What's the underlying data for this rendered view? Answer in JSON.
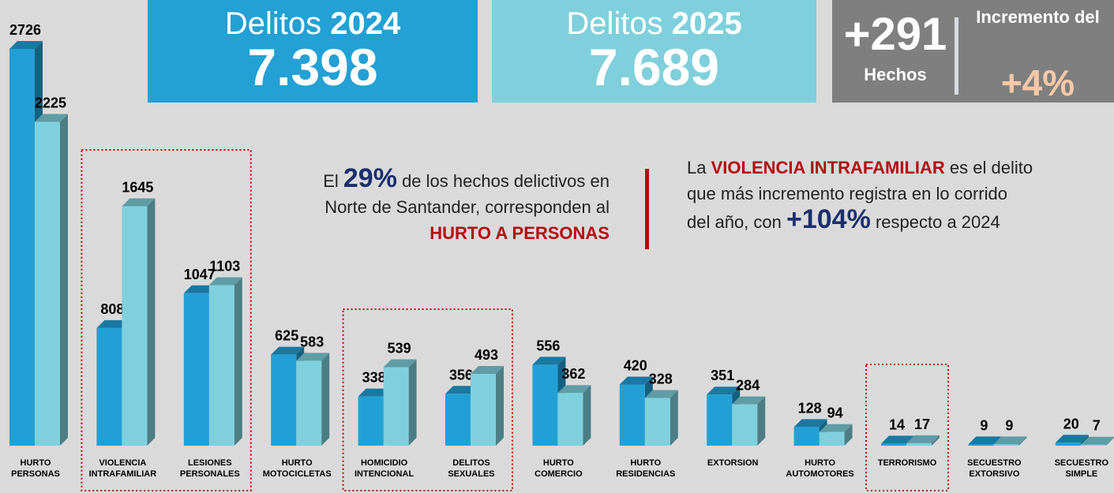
{
  "chart_data": {
    "type": "bar3d",
    "categories": [
      "HURTO PERSONAS",
      "VIOLENCIA INTRAFAMILIAR",
      "LESIONES PERSONALES",
      "HURTO MOTOCICLETAS",
      "HOMICIDIO INTENCIONAL",
      "DELITOS SEXUALES",
      "HURTO COMERCIO",
      "HURTO RESIDENCIAS",
      "EXTORSION",
      "HURTO AUTOMOTORES",
      "TERRORISMO",
      "SECUESTRO EXTORSIVO",
      "SECUESTRO SIMPLE"
    ],
    "series": [
      {
        "color": "#22a0d6",
        "values": [
          2726,
          808,
          1047,
          625,
          338,
          356,
          556,
          420,
          351,
          128,
          14,
          9,
          20
        ]
      },
      {
        "color": "#7fd0dd",
        "values": [
          2225,
          1645,
          1103,
          583,
          539,
          493,
          362,
          328,
          284,
          94,
          17,
          9,
          7
        ]
      }
    ],
    "highlight_groups": [
      [
        1,
        2
      ],
      [
        4,
        5
      ],
      [
        10
      ]
    ]
  },
  "summary": [
    {
      "label": "Delitos",
      "year": "2024",
      "total": "7.398",
      "color": "#23a0d4"
    },
    {
      "label": "Delitos",
      "year": "2025",
      "total": "7.689",
      "color": "#7fd0dc"
    }
  ],
  "change": {
    "absolute": "+291",
    "absolute_label": "Hechos",
    "relative_label": "Incremento del",
    "relative": "+4%"
  },
  "notes": [
    {
      "pre": "El",
      "highlight": "29%",
      "text": "de los hechos delictivos en Norte de Santander, corresponden al",
      "emphasis": "HURTO A PERSONAS"
    },
    {
      "pre": "La",
      "emphasis": "VIOLENCIA INTRAFAMILIAR",
      "text": "es el delito que más incremento registra en lo corrido del año, con",
      "highlight": "+104%",
      "post": "respecto a 2024"
    }
  ]
}
